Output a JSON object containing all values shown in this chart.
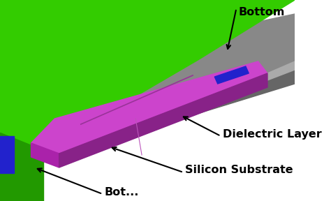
{
  "bg_color": "#ffffff",
  "green_bright": "#33cc00",
  "green_dark": "#229900",
  "gray_light": "#999999",
  "gray_mid": "#777777",
  "gray_dark": "#555555",
  "gray_substrate_top": "#8a8a8a",
  "magenta_top": "#cc44cc",
  "magenta_side": "#aa22aa",
  "magenta_dark": "#882288",
  "blue_col": "#2222cc",
  "labels": {
    "bottom": "Bottom",
    "dielectric": "Dielectric Layer",
    "silicon": "Silicon Substrate",
    "bot_partial": "Bot..."
  },
  "label_fontsize": 11.5,
  "label_fontweight": "bold"
}
